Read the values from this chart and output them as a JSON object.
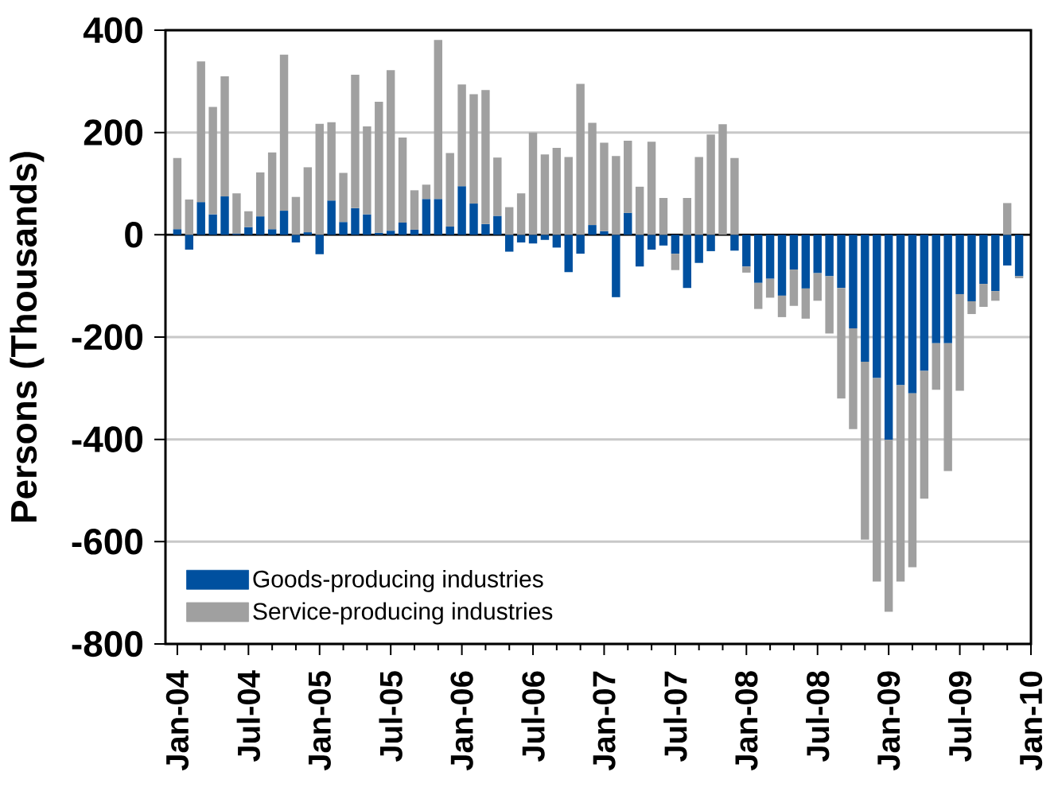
{
  "chart_data": {
    "type": "bar",
    "ylabel": "Persons (Thousands)",
    "x": [
      "2004-01",
      "2004-02",
      "2004-03",
      "2004-04",
      "2004-05",
      "2004-06",
      "2004-07",
      "2004-08",
      "2004-09",
      "2004-10",
      "2004-11",
      "2004-12",
      "2005-01",
      "2005-02",
      "2005-03",
      "2005-04",
      "2005-05",
      "2005-06",
      "2005-07",
      "2005-08",
      "2005-09",
      "2005-10",
      "2005-11",
      "2005-12",
      "2006-01",
      "2006-02",
      "2006-03",
      "2006-04",
      "2006-05",
      "2006-06",
      "2006-07",
      "2006-08",
      "2006-09",
      "2006-10",
      "2006-11",
      "2006-12",
      "2007-01",
      "2007-02",
      "2007-03",
      "2007-04",
      "2007-05",
      "2007-06",
      "2007-07",
      "2007-08",
      "2007-09",
      "2007-10",
      "2007-11",
      "2007-12",
      "2008-01",
      "2008-02",
      "2008-03",
      "2008-04",
      "2008-05",
      "2008-06",
      "2008-07",
      "2008-08",
      "2008-09",
      "2008-10",
      "2008-11",
      "2008-12",
      "2009-01",
      "2009-02",
      "2009-03",
      "2009-04",
      "2009-05",
      "2009-06",
      "2009-07",
      "2009-08",
      "2009-09",
      "2009-10",
      "2009-11",
      "2009-12"
    ],
    "series": [
      {
        "name": "Goods-producing industries",
        "color": "#00509f",
        "values": [
          11,
          -29,
          64,
          40,
          75,
          2,
          15,
          36,
          11,
          47,
          -15,
          5,
          -38,
          67,
          25,
          52,
          40,
          4,
          8,
          24,
          10,
          70,
          70,
          16,
          95,
          61,
          21,
          37,
          -33,
          -15,
          -17,
          -10,
          -25,
          -73,
          -37,
          19,
          7,
          -122,
          43,
          -62,
          -29,
          -21,
          -37,
          -104,
          -55,
          -32,
          0,
          -31,
          -62,
          -94,
          -86,
          -119,
          -68,
          -105,
          -75,
          -81,
          -104,
          -183,
          -248,
          -280,
          -401,
          -294,
          -310,
          -266,
          -212,
          -212,
          -116,
          -130,
          -96,
          -110,
          -60,
          -81
        ]
      },
      {
        "name": "Service-producing industries",
        "color": "#a0a0a0",
        "values": [
          139,
          69,
          275,
          210,
          235,
          79,
          31,
          86,
          150,
          305,
          74,
          127,
          217,
          153,
          96,
          261,
          172,
          256,
          314,
          166,
          77,
          28,
          311,
          144,
          199,
          214,
          262,
          114,
          54,
          81,
          200,
          157,
          170,
          152,
          295,
          200,
          173,
          154,
          141,
          94,
          182,
          72,
          -32,
          72,
          152,
          196,
          216,
          150,
          -12,
          -51,
          -37,
          -42,
          -71,
          -59,
          -54,
          -112,
          -216,
          -197,
          -348,
          -398,
          -336,
          -384,
          -340,
          -250,
          -91,
          -250,
          -189,
          -25,
          -45,
          -19,
          62,
          -4
        ]
      }
    ],
    "stacked": true,
    "xlim": [
      "2003-12",
      "2010-01"
    ],
    "xticks": [
      {
        "value": "2004-01",
        "label": "Jan-04"
      },
      {
        "value": "2004-03",
        "label": null
      },
      {
        "value": "2004-05",
        "label": null
      },
      {
        "value": "2004-07",
        "label": "Jul-04"
      },
      {
        "value": "2004-09",
        "label": null
      },
      {
        "value": "2004-11",
        "label": null
      },
      {
        "value": "2005-01",
        "label": "Jan-05"
      },
      {
        "value": "2005-03",
        "label": null
      },
      {
        "value": "2005-05",
        "label": null
      },
      {
        "value": "2005-07",
        "label": "Jul-05"
      },
      {
        "value": "2005-09",
        "label": null
      },
      {
        "value": "2005-11",
        "label": null
      },
      {
        "value": "2006-01",
        "label": "Jan-06"
      },
      {
        "value": "2006-03",
        "label": null
      },
      {
        "value": "2006-05",
        "label": null
      },
      {
        "value": "2006-07",
        "label": "Jul-06"
      },
      {
        "value": "2006-09",
        "label": null
      },
      {
        "value": "2006-11",
        "label": null
      },
      {
        "value": "2007-01",
        "label": "Jan-07"
      },
      {
        "value": "2007-03",
        "label": null
      },
      {
        "value": "2007-05",
        "label": null
      },
      {
        "value": "2007-07",
        "label": "Jul-07"
      },
      {
        "value": "2007-09",
        "label": null
      },
      {
        "value": "2007-11",
        "label": null
      },
      {
        "value": "2008-01",
        "label": "Jan-08"
      },
      {
        "value": "2008-03",
        "label": null
      },
      {
        "value": "2008-05",
        "label": null
      },
      {
        "value": "2008-07",
        "label": "Jul-08"
      },
      {
        "value": "2008-09",
        "label": null
      },
      {
        "value": "2008-11",
        "label": null
      },
      {
        "value": "2009-01",
        "label": "Jan-09"
      },
      {
        "value": "2009-03",
        "label": null
      },
      {
        "value": "2009-05",
        "label": null
      },
      {
        "value": "2009-07",
        "label": "Jul-09"
      },
      {
        "value": "2009-09",
        "label": null
      },
      {
        "value": "2009-11",
        "label": null
      },
      {
        "value": "2010-01",
        "label": "Jan-10"
      }
    ],
    "ylim": [
      -800,
      400
    ],
    "yticks": [
      -800,
      -600,
      -400,
      -200,
      0,
      200,
      400
    ],
    "grid": "y",
    "legend": "bottom left"
  }
}
